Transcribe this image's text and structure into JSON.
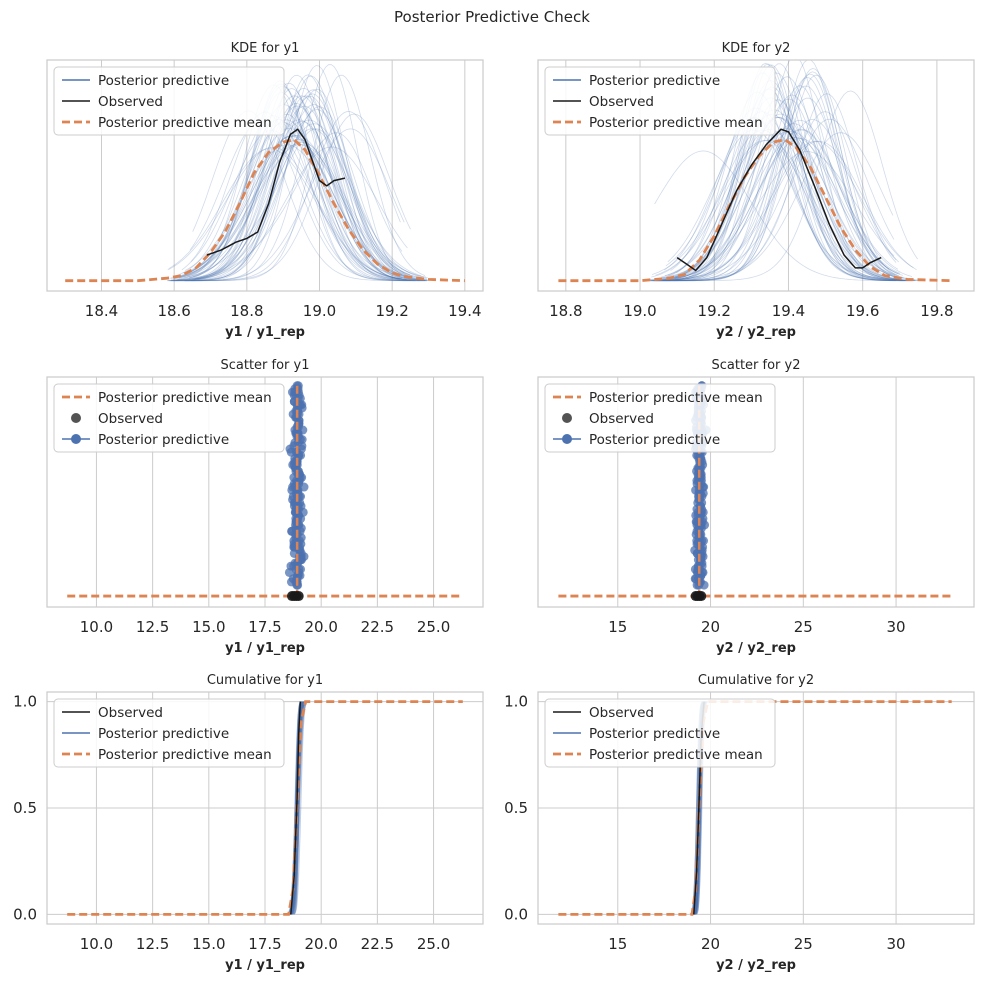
{
  "figure": {
    "title": "Posterior Predictive Check"
  },
  "colors": {
    "ppc": "#4c72b0",
    "observed": "#1a1a1a",
    "mean": "#dd8452",
    "grid": "#cccccc"
  },
  "chart_data": [
    {
      "id": "kde_y1",
      "type": "line",
      "title": "KDE for y1",
      "xlabel": "y1 / y1_rep",
      "xlim": [
        18.25,
        19.45
      ],
      "ylim": [
        -0.08,
        1.72
      ],
      "grid": "vertical",
      "xticks": [
        18.4,
        18.6,
        18.8,
        19.0,
        19.2,
        19.4
      ],
      "xtick_decimals": 1,
      "yticks": [],
      "legend": {
        "placement": "upper-left",
        "entries": [
          {
            "label": "Posterior predictive",
            "style": "ppc"
          },
          {
            "label": "Observed",
            "style": "obs"
          },
          {
            "label": "Posterior predictive mean",
            "style": "mean"
          }
        ]
      },
      "series": [
        {
          "name": "Posterior predictive mean",
          "style": "mean",
          "x": [
            18.3,
            18.4,
            18.5,
            18.58,
            18.62,
            18.66,
            18.7,
            18.74,
            18.78,
            18.82,
            18.86,
            18.9,
            18.93,
            18.96,
            19.0,
            19.04,
            19.08,
            19.12,
            19.16,
            19.2,
            19.24,
            19.3,
            19.4
          ],
          "y": [
            0.0,
            0.0,
            0.0,
            0.02,
            0.04,
            0.1,
            0.22,
            0.38,
            0.6,
            0.84,
            1.0,
            1.08,
            1.1,
            1.02,
            0.82,
            0.6,
            0.4,
            0.24,
            0.13,
            0.06,
            0.03,
            0.01,
            0.0
          ]
        },
        {
          "name": "Observed",
          "style": "obs",
          "x": [
            18.69,
            18.73,
            18.77,
            18.8,
            18.83,
            18.86,
            18.89,
            18.92,
            18.94,
            18.96,
            18.98,
            19.0,
            19.02,
            19.04,
            19.07
          ],
          "y": [
            0.2,
            0.24,
            0.3,
            0.33,
            0.38,
            0.6,
            0.92,
            1.14,
            1.18,
            1.1,
            0.94,
            0.78,
            0.74,
            0.78,
            0.8
          ]
        }
      ],
      "ppc_band": {
        "samples": 60,
        "center": 18.93,
        "center_jitter": 0.06,
        "sd": [
          0.07,
          0.13
        ],
        "x_range": [
          18.58,
          19.3
        ],
        "width": 0.26,
        "peak_scale": 0.13
      }
    },
    {
      "id": "kde_y2",
      "type": "line",
      "title": "KDE for y2",
      "xlabel": "y2 / y2_rep",
      "xlim": [
        18.725,
        19.9
      ],
      "ylim": [
        -0.08,
        1.72
      ],
      "grid": "vertical",
      "xticks": [
        18.8,
        19.0,
        19.2,
        19.4,
        19.6,
        19.8
      ],
      "xtick_decimals": 1,
      "yticks": [],
      "legend": {
        "placement": "upper-left",
        "entries": [
          {
            "label": "Posterior predictive",
            "style": "ppc"
          },
          {
            "label": "Observed",
            "style": "obs"
          },
          {
            "label": "Posterior predictive mean",
            "style": "mean"
          }
        ]
      },
      "series": [
        {
          "name": "Posterior predictive mean",
          "style": "mean",
          "x": [
            18.78,
            18.9,
            19.0,
            19.08,
            19.12,
            19.16,
            19.2,
            19.24,
            19.28,
            19.32,
            19.36,
            19.39,
            19.42,
            19.46,
            19.5,
            19.54,
            19.58,
            19.62,
            19.66,
            19.72,
            19.84
          ],
          "y": [
            0.0,
            0.0,
            0.0,
            0.02,
            0.05,
            0.16,
            0.35,
            0.58,
            0.8,
            0.97,
            1.08,
            1.1,
            1.04,
            0.88,
            0.65,
            0.42,
            0.24,
            0.11,
            0.04,
            0.01,
            0.0
          ]
        },
        {
          "name": "Observed",
          "style": "obs",
          "x": [
            19.1,
            19.13,
            19.15,
            19.18,
            19.22,
            19.26,
            19.3,
            19.34,
            19.38,
            19.4,
            19.43,
            19.47,
            19.51,
            19.55,
            19.58,
            19.6,
            19.62,
            19.65
          ],
          "y": [
            0.18,
            0.12,
            0.08,
            0.18,
            0.44,
            0.7,
            0.9,
            1.06,
            1.18,
            1.16,
            1.02,
            0.74,
            0.44,
            0.2,
            0.1,
            0.1,
            0.14,
            0.18
          ]
        }
      ],
      "ppc_band": {
        "samples": 60,
        "center": 19.39,
        "center_jitter": 0.06,
        "sd": [
          0.07,
          0.13
        ],
        "x_range": [
          19.02,
          19.75
        ],
        "width": 0.29,
        "peak_scale": 0.13
      }
    },
    {
      "id": "scatter_y1",
      "type": "scatter",
      "title": "Scatter for y1",
      "xlabel": "y1 / y1_rep",
      "xlim": [
        7.8,
        27.2
      ],
      "ylim": [
        -0.05,
        1.0
      ],
      "grid": "vertical",
      "xticks": [
        10.0,
        12.5,
        15.0,
        17.5,
        20.0,
        22.5,
        25.0
      ],
      "xtick_decimals": 1,
      "yticks": [],
      "legend": {
        "placement": "upper-left",
        "entries": [
          {
            "label": "Posterior predictive mean",
            "style": "mean"
          },
          {
            "label": "Observed",
            "style": "obs_dot"
          },
          {
            "label": "Posterior predictive",
            "style": "ppc_dot"
          }
        ]
      },
      "mean_line": {
        "x": [
          8.7,
          26.3
        ],
        "y": 0.0
      },
      "observed_x": [
        18.7,
        18.8,
        18.9,
        19.0
      ],
      "ppc_points": {
        "center": 18.93,
        "x_range": [
          18.3,
          19.4
        ],
        "rows": 64,
        "dashed_column_x": 18.93
      }
    },
    {
      "id": "scatter_y2",
      "type": "scatter",
      "title": "Scatter for y2",
      "xlabel": "y2 / y2_rep",
      "xlim": [
        10.7,
        34.2
      ],
      "ylim": [
        -0.05,
        1.0
      ],
      "grid": "vertical",
      "xticks": [
        15,
        20,
        25,
        30
      ],
      "xtick_decimals": 0,
      "yticks": [],
      "legend": {
        "placement": "upper-left",
        "entries": [
          {
            "label": "Posterior predictive mean",
            "style": "mean"
          },
          {
            "label": "Observed",
            "style": "obs_dot"
          },
          {
            "label": "Posterior predictive",
            "style": "ppc_dot"
          }
        ]
      },
      "mean_line": {
        "x": [
          11.8,
          33.0
        ],
        "y": 0.0
      },
      "observed_x": [
        19.2,
        19.3,
        19.4,
        19.5
      ],
      "ppc_points": {
        "center": 19.39,
        "x_range": [
          18.9,
          19.9
        ],
        "rows": 64,
        "dashed_column_x": 19.39
      }
    },
    {
      "id": "cum_y1",
      "type": "line",
      "title": "Cumulative for y1",
      "xlabel": "y1 / y1_rep",
      "xlim": [
        7.8,
        27.2
      ],
      "ylim": [
        -0.045,
        1.045
      ],
      "grid": "both",
      "xticks": [
        10.0,
        12.5,
        15.0,
        17.5,
        20.0,
        22.5,
        25.0
      ],
      "xtick_decimals": 1,
      "yticks": [
        0.0,
        0.5,
        1.0
      ],
      "ytick_decimals": 1,
      "legend": {
        "placement": "upper-left",
        "entries": [
          {
            "label": "Observed",
            "style": "obs"
          },
          {
            "label": "Posterior predictive",
            "style": "ppc"
          },
          {
            "label": "Posterior predictive mean",
            "style": "mean"
          }
        ]
      },
      "series": [
        {
          "name": "Posterior predictive mean",
          "style": "mean",
          "x": [
            8.7,
            18.55,
            18.75,
            18.93,
            19.1,
            19.3,
            26.3
          ],
          "y": [
            0,
            0,
            0.12,
            0.52,
            0.9,
            1.0,
            1.0
          ]
        },
        {
          "name": "Observed",
          "style": "obs",
          "x": [
            18.65,
            18.8,
            18.93,
            19.0,
            19.07
          ],
          "y": [
            0,
            0.18,
            0.55,
            0.85,
            1.0
          ]
        }
      ],
      "ppc_band": {
        "samples": 40,
        "center": 18.93,
        "center_jitter": 0.06,
        "sd": [
          0.07,
          0.13
        ]
      }
    },
    {
      "id": "cum_y2",
      "type": "line",
      "title": "Cumulative for y2",
      "xlabel": "y2 / y2_rep",
      "xlim": [
        10.7,
        34.2
      ],
      "ylim": [
        -0.045,
        1.045
      ],
      "grid": "both",
      "xticks": [
        15,
        20,
        25,
        30
      ],
      "xtick_decimals": 0,
      "yticks": [
        0.0,
        0.5,
        1.0
      ],
      "ytick_decimals": 1,
      "legend": {
        "placement": "upper-left",
        "entries": [
          {
            "label": "Observed",
            "style": "obs"
          },
          {
            "label": "Posterior predictive",
            "style": "ppc"
          },
          {
            "label": "Posterior predictive mean",
            "style": "mean"
          }
        ]
      },
      "series": [
        {
          "name": "Posterior predictive mean",
          "style": "mean",
          "x": [
            11.8,
            19.0,
            19.2,
            19.39,
            19.6,
            19.85,
            33.0
          ],
          "y": [
            0,
            0,
            0.12,
            0.52,
            0.9,
            1.0,
            1.0
          ]
        },
        {
          "name": "Observed",
          "style": "obs",
          "x": [
            19.1,
            19.25,
            19.39,
            19.5,
            19.65
          ],
          "y": [
            0,
            0.2,
            0.55,
            0.85,
            1.0
          ]
        }
      ],
      "ppc_band": {
        "samples": 40,
        "center": 19.39,
        "center_jitter": 0.06,
        "sd": [
          0.07,
          0.13
        ]
      }
    }
  ]
}
